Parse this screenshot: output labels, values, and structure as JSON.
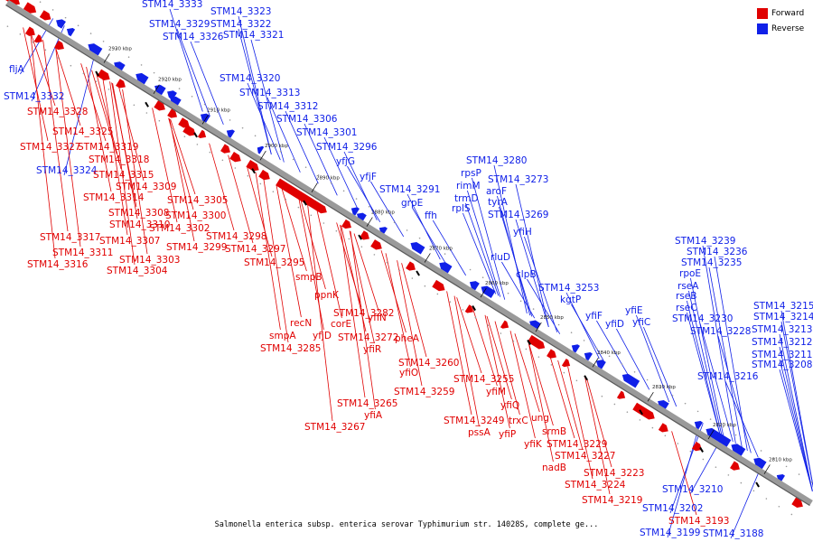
{
  "colors": {
    "forward": "#e00000",
    "reverse": "#1020e8",
    "backbone": "#9a9a9a"
  },
  "legend": {
    "forward_label": "Forward",
    "reverse_label": "Reverse"
  },
  "caption": "Salmonella enterica subsp. enterica serovar Typhimurium str. 14028S, complete ge...",
  "ticks": [
    "2930 kbp",
    "2920 kbp",
    "2910 kbp",
    "2900 kbp",
    "2890 kbp",
    "2880 kbp",
    "2870 kbp",
    "2860 kbp",
    "2850 kbp",
    "2840 kbp",
    "2830 kbp",
    "2820 kbp",
    "2810 kbp"
  ],
  "reverse_labels": [
    "STM14_3333",
    "STM14_3329",
    "STM14_3323",
    "STM14_3322",
    "STM14_3326",
    "STM14_3321",
    "fljA",
    "STM14_3332",
    "STM14_3320",
    "STM14_3313",
    "STM14_3312",
    "STM14_3306",
    "STM14_3301",
    "STM14_3296",
    "yfjG",
    "STM14_3324",
    "yfjF",
    "STM14_3291",
    "grpE",
    "ffh",
    "STM14_3280",
    "rpsP",
    "rimM",
    "trmD",
    "rplS",
    "STM14_3273",
    "aroF",
    "tyrA",
    "STM14_3269",
    "yfiH",
    "rluD",
    "clpB",
    "STM14_3253",
    "kgtP",
    "yfiF",
    "yfiD",
    "yfiE",
    "yfiC",
    "STM14_3239",
    "STM14_3236",
    "STM14_3235",
    "rpoE",
    "rseA",
    "rseB",
    "rseC",
    "STM14_3230",
    "STM14_3228",
    "STM14_3216",
    "STM14_3215",
    "STM14_3214",
    "STM14_3213",
    "STM14_3212",
    "STM14_3211",
    "STM14_3208",
    "STM14_3210",
    "STM14_3202",
    "STM14_3199",
    "STM14_3188"
  ],
  "forward_labels": [
    "STM14_3328",
    "STM14_3325",
    "STM14_3327",
    "STM14_3319",
    "STM14_3318",
    "STM14_3315",
    "STM14_3309",
    "STM14_3314",
    "STM14_3305",
    "STM14_3308",
    "STM14_3300",
    "STM14_3310",
    "STM14_3302",
    "STM14_3298",
    "STM14_3317",
    "STM14_3307",
    "STM14_3299",
    "STM14_3297",
    "STM14_3311",
    "STM14_3303",
    "STM14_3316",
    "STM14_3304",
    "STM14_3295",
    "smpB",
    "ppnK",
    "STM14_3282",
    "recN",
    "corE",
    "yfiN",
    "smpA",
    "yfjD",
    "STM14_3272",
    "pheA",
    "STM14_3285",
    "yfiR",
    "STM14_3260",
    "yfiO",
    "STM14_3255",
    "STM14_3259",
    "yfiM",
    "STM14_3265",
    "yfiQ",
    "yfiA",
    "STM14_3249",
    "trxC",
    "ung",
    "STM14_3267",
    "pssA",
    "yfiP",
    "srmB",
    "yfiK",
    "STM14_3229",
    "STM14_3227",
    "nadB",
    "STM14_3223",
    "STM14_3224",
    "STM14_3219",
    "STM14_3193"
  ]
}
